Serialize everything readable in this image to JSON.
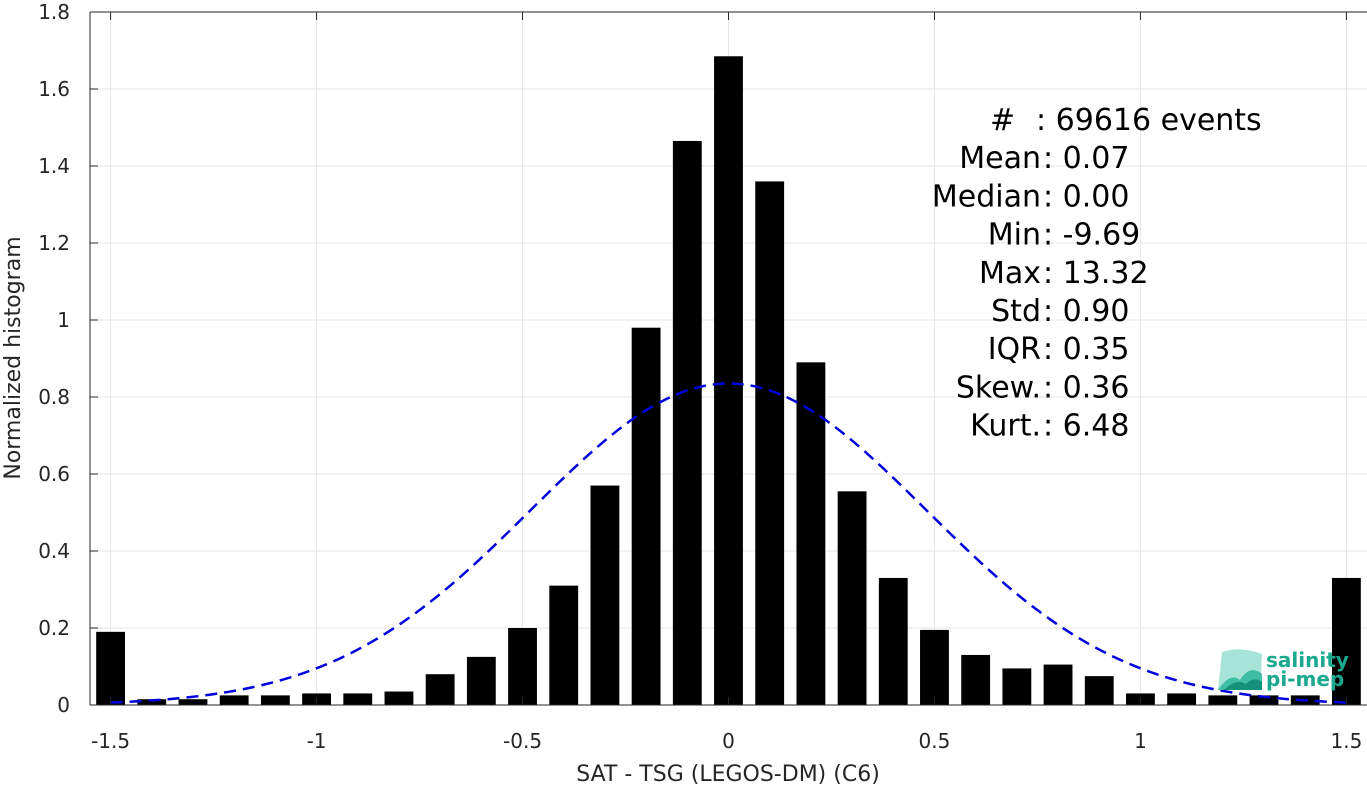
{
  "chart_data": {
    "type": "bar",
    "title": "",
    "xlabel": "SAT - TSG (LEGOS-DM) (C6)",
    "ylabel": "Normalized histogram",
    "xlim": [
      -1.55,
      1.55
    ],
    "ylim": [
      0,
      1.8
    ],
    "grid": true,
    "x_ticks": [
      -1.5,
      -1,
      -0.5,
      0,
      0.5,
      1,
      1.5
    ],
    "x_tick_labels": [
      "-1.5",
      "-1",
      "-0.5",
      "0",
      "0.5",
      "1",
      "1.5"
    ],
    "y_ticks": [
      0,
      0.2,
      0.4,
      0.6,
      0.8,
      1,
      1.2,
      1.4,
      1.6,
      1.8
    ],
    "y_tick_labels": [
      "0",
      "0.2",
      "0.4",
      "0.6",
      "0.8",
      "1",
      "1.2",
      "1.4",
      "1.6",
      "1.8"
    ],
    "bar_width": 0.07,
    "bar_color": "#000000",
    "x": [
      -1.5,
      -1.4,
      -1.3,
      -1.2,
      -1.1,
      -1.0,
      -0.9,
      -0.8,
      -0.7,
      -0.6,
      -0.5,
      -0.4,
      -0.3,
      -0.2,
      -0.1,
      0.0,
      0.1,
      0.2,
      0.3,
      0.4,
      0.5,
      0.6,
      0.7,
      0.8,
      0.9,
      1.0,
      1.1,
      1.2,
      1.3,
      1.4,
      1.5
    ],
    "values": [
      0.19,
      0.015,
      0.015,
      0.025,
      0.025,
      0.03,
      0.03,
      0.035,
      0.08,
      0.125,
      0.2,
      0.31,
      0.57,
      0.98,
      1.465,
      1.685,
      1.36,
      0.89,
      0.555,
      0.33,
      0.195,
      0.13,
      0.095,
      0.105,
      0.075,
      0.03,
      0.03,
      0.025,
      0.025,
      0.025,
      0.33
    ],
    "fit_curve": {
      "type": "normal",
      "mean": 0.0,
      "std": 0.48,
      "peak": 0.835,
      "color": "#0000dd",
      "style": "dashed",
      "x_range": [
        -1.5,
        1.5
      ]
    }
  },
  "stats": [
    {
      "label": "#  ",
      "sep": ": ",
      "value": "69616 events"
    },
    {
      "label": "Mean ",
      "sep": ": ",
      "value": "0.07"
    },
    {
      "label": "Median ",
      "sep": ": ",
      "value": "0.00"
    },
    {
      "label": "Min ",
      "sep": ": ",
      "value": "-9.69"
    },
    {
      "label": "Max ",
      "sep": ": ",
      "value": "13.32"
    },
    {
      "label": "Std ",
      "sep": ": ",
      "value": "0.90"
    },
    {
      "label": "IQR ",
      "sep": ": ",
      "value": "0.35"
    },
    {
      "label": "Skew. ",
      "sep": ": ",
      "value": "0.36"
    },
    {
      "label": "Kurt. ",
      "sep": ": ",
      "value": "6.48"
    }
  ],
  "logo": {
    "line1": "salinity",
    "line2": "pi-mep",
    "color": "#1aa88f"
  }
}
